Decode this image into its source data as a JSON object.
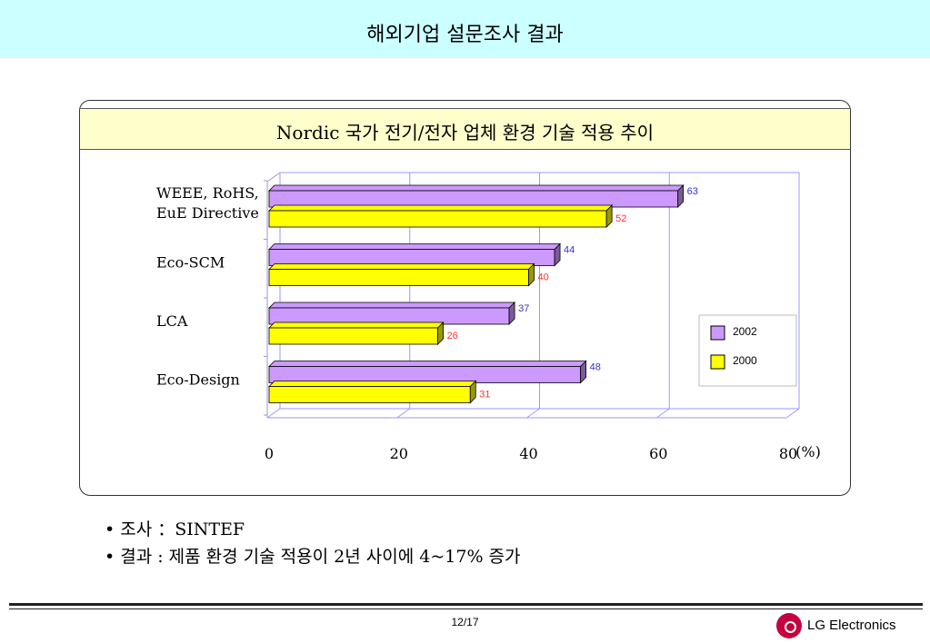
{
  "header": {
    "title": "해외기업 설문조사 결과"
  },
  "panel": {
    "title": "Nordic 국가 전기/전자 업체 환경 기술 적용 추이"
  },
  "chart_data": {
    "type": "bar",
    "orientation": "horizontal",
    "categories": [
      "WEEE, RoHS,\nEuE Directive",
      "Eco-SCM",
      "LCA",
      "Eco-Design"
    ],
    "series": [
      {
        "name": "2002",
        "values": [
          63,
          44,
          37,
          48
        ],
        "color": "#cc99ff",
        "label_color": "#3333cc"
      },
      {
        "name": "2000",
        "values": [
          52,
          40,
          26,
          31
        ],
        "color": "#ffff00",
        "label_color": "#ff3333"
      }
    ],
    "xlim": [
      0,
      80
    ],
    "xticks": [
      "0",
      "20",
      "40",
      "60",
      "80"
    ],
    "xunit": "(%)",
    "grid": true,
    "legend": "right"
  },
  "bullets": [
    "• 조사 ：SINTEF",
    "• 결과 : 제품 환경 기술 적용이 2년 사이에 4~17% 증가"
  ],
  "footer": {
    "page": "12/17",
    "brand": "LG Electronics"
  }
}
